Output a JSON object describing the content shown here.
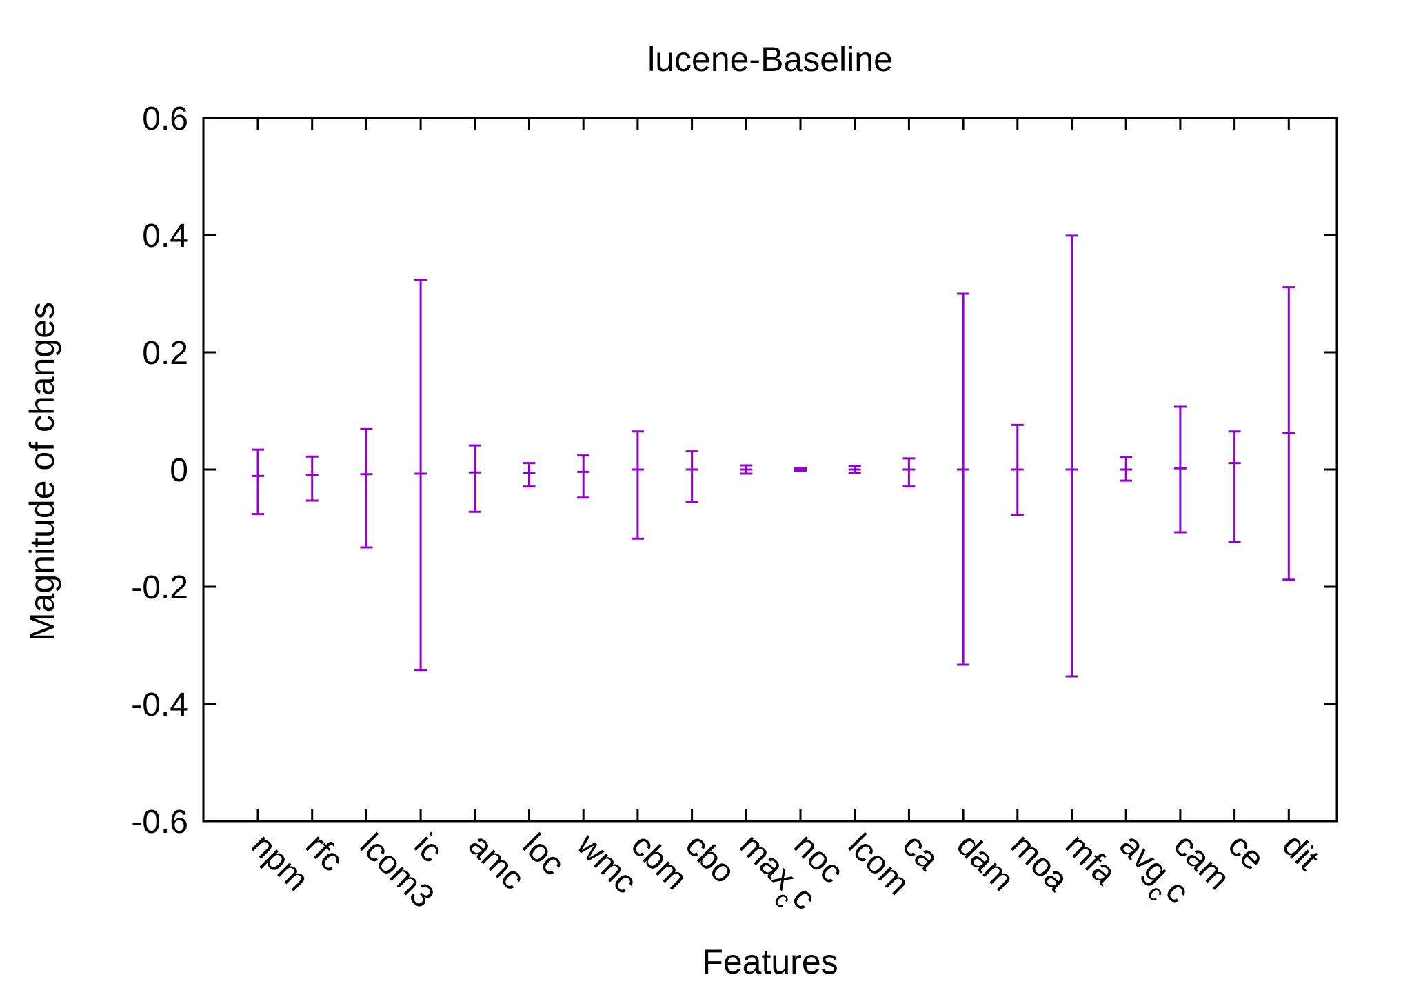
{
  "chart_data": {
    "type": "errorbar",
    "title": "lucene-Baseline",
    "xlabel": "Features",
    "ylabel": "Magnitude of changes",
    "ylim": [
      -0.6,
      0.6
    ],
    "yticks": [
      -0.6,
      -0.4,
      -0.2,
      0,
      0.2,
      0.4,
      0.6
    ],
    "ytick_labels": [
      "-0.6",
      "-0.4",
      "-0.2",
      "0",
      "0.2",
      "0.4",
      "0.6"
    ],
    "grid": false,
    "legend": "none",
    "color": "#9400d3",
    "categories": [
      {
        "label": "npm",
        "sub": ""
      },
      {
        "label": "rfc",
        "sub": ""
      },
      {
        "label": "lcom3",
        "sub": ""
      },
      {
        "label": "ic",
        "sub": ""
      },
      {
        "label": "amc",
        "sub": ""
      },
      {
        "label": "loc",
        "sub": ""
      },
      {
        "label": "wmc",
        "sub": ""
      },
      {
        "label": "cbm",
        "sub": ""
      },
      {
        "label": "cbo",
        "sub": ""
      },
      {
        "label": "max",
        "sub": "c",
        "tail": "c"
      },
      {
        "label": "noc",
        "sub": ""
      },
      {
        "label": "lcom",
        "sub": ""
      },
      {
        "label": "ca",
        "sub": ""
      },
      {
        "label": "dam",
        "sub": ""
      },
      {
        "label": "moa",
        "sub": ""
      },
      {
        "label": "mfa",
        "sub": ""
      },
      {
        "label": "avg",
        "sub": "c",
        "tail": "c"
      },
      {
        "label": "cam",
        "sub": ""
      },
      {
        "label": "ce",
        "sub": ""
      },
      {
        "label": "dit",
        "sub": ""
      }
    ],
    "mean": [
      -0.011,
      -0.009,
      -0.008,
      -0.007,
      -0.005,
      -0.006,
      -0.004,
      0.0,
      0.0,
      0.0,
      0.0,
      0.0,
      0.0,
      0.0,
      0.0,
      0.0,
      0.0,
      0.002,
      0.011,
      0.062
    ],
    "lower": [
      -0.076,
      -0.053,
      -0.133,
      -0.342,
      -0.072,
      -0.029,
      -0.048,
      -0.118,
      -0.055,
      -0.007,
      -0.002,
      -0.006,
      -0.029,
      -0.333,
      -0.077,
      -0.353,
      -0.019,
      -0.107,
      -0.124,
      -0.188
    ],
    "upper": [
      0.034,
      0.022,
      0.069,
      0.324,
      0.041,
      0.011,
      0.024,
      0.065,
      0.031,
      0.007,
      0.002,
      0.006,
      0.019,
      0.3,
      0.076,
      0.399,
      0.021,
      0.107,
      0.065,
      0.311
    ]
  }
}
